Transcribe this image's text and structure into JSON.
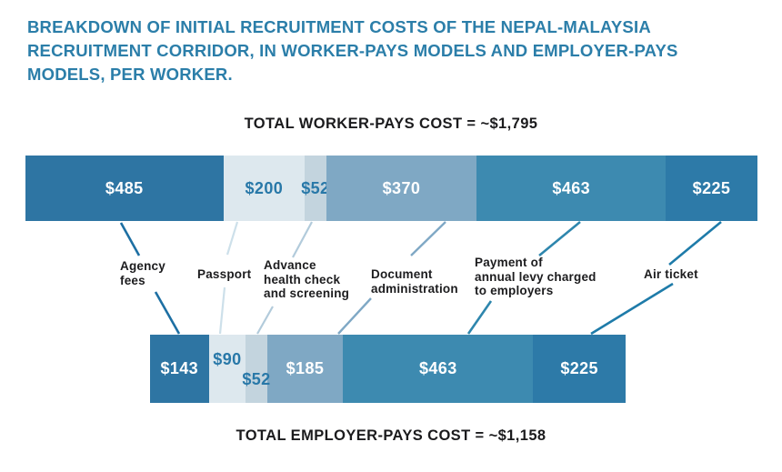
{
  "title": {
    "text": "BREAKDOWN OF INITIAL RECRUITMENT COSTS OF THE NEPAL-MALAYSIA RECRUITMENT CORRIDOR, IN WORKER-PAYS MODELS AND EMPLOYER-PAYS MODELS, PER WORKER.",
    "lines": [
      "BREAKDOWN OF INITIAL RECRUITMENT COSTS OF THE NEPAL-MALAYSIA",
      "RECRUITMENT CORRIDOR, IN WORKER-PAYS MODELS AND EMPLOYER-PAYS",
      "MODELS, PER WORKER."
    ],
    "color": "#2b7ea9"
  },
  "chart_data": {
    "type": "bar",
    "orientation": "horizontal-stacked",
    "categories": [
      "Agency fees",
      "Passport",
      "Advance health check and screening",
      "Document administration",
      "Payment of annual levy charged to employers",
      "Air ticket"
    ],
    "category_label_lines": [
      [
        "Agency",
        "fees"
      ],
      [
        "Passport"
      ],
      [
        "Advance",
        "health check",
        "and screening"
      ],
      [
        "Document",
        "administration"
      ],
      [
        "Payment of",
        "annual levy charged",
        "to employers"
      ],
      [
        "Air ticket"
      ]
    ],
    "series": [
      {
        "name": "Worker-pays",
        "caption": "TOTAL WORKER-PAYS COST = ~$1,795",
        "total": 1795,
        "values": [
          485,
          200,
          52,
          370,
          463,
          225
        ],
        "value_labels": [
          "$485",
          "$200",
          "$52",
          "$370",
          "$463",
          "$225"
        ]
      },
      {
        "name": "Employer-pays",
        "caption": "TOTAL EMPLOYER-PAYS COST = ~$1,158",
        "total": 1158,
        "values": [
          143,
          90,
          52,
          185,
          463,
          225
        ],
        "value_labels": [
          "$143",
          "$90",
          "$52",
          "$185",
          "$463",
          "$225"
        ]
      }
    ],
    "segment_colors": [
      "#2e75a3",
      "#dde8ee",
      "#c3d4de",
      "#7fa8c4",
      "#3d8ab0",
      "#2d7aa8"
    ],
    "value_label_colors": [
      "#ffffff",
      "#2878a8",
      "#2878a8",
      "#ffffff",
      "#ffffff",
      "#ffffff"
    ],
    "connector_colors": [
      "#1d6fa3",
      "#cde0ea",
      "#b2cbdb",
      "#7fa8c5",
      "#2e86ad",
      "#1e7ba9"
    ],
    "caption_color": "#1b1b1d",
    "category_label_color": "#1c1c1e",
    "legend": "none",
    "grid": "off"
  }
}
